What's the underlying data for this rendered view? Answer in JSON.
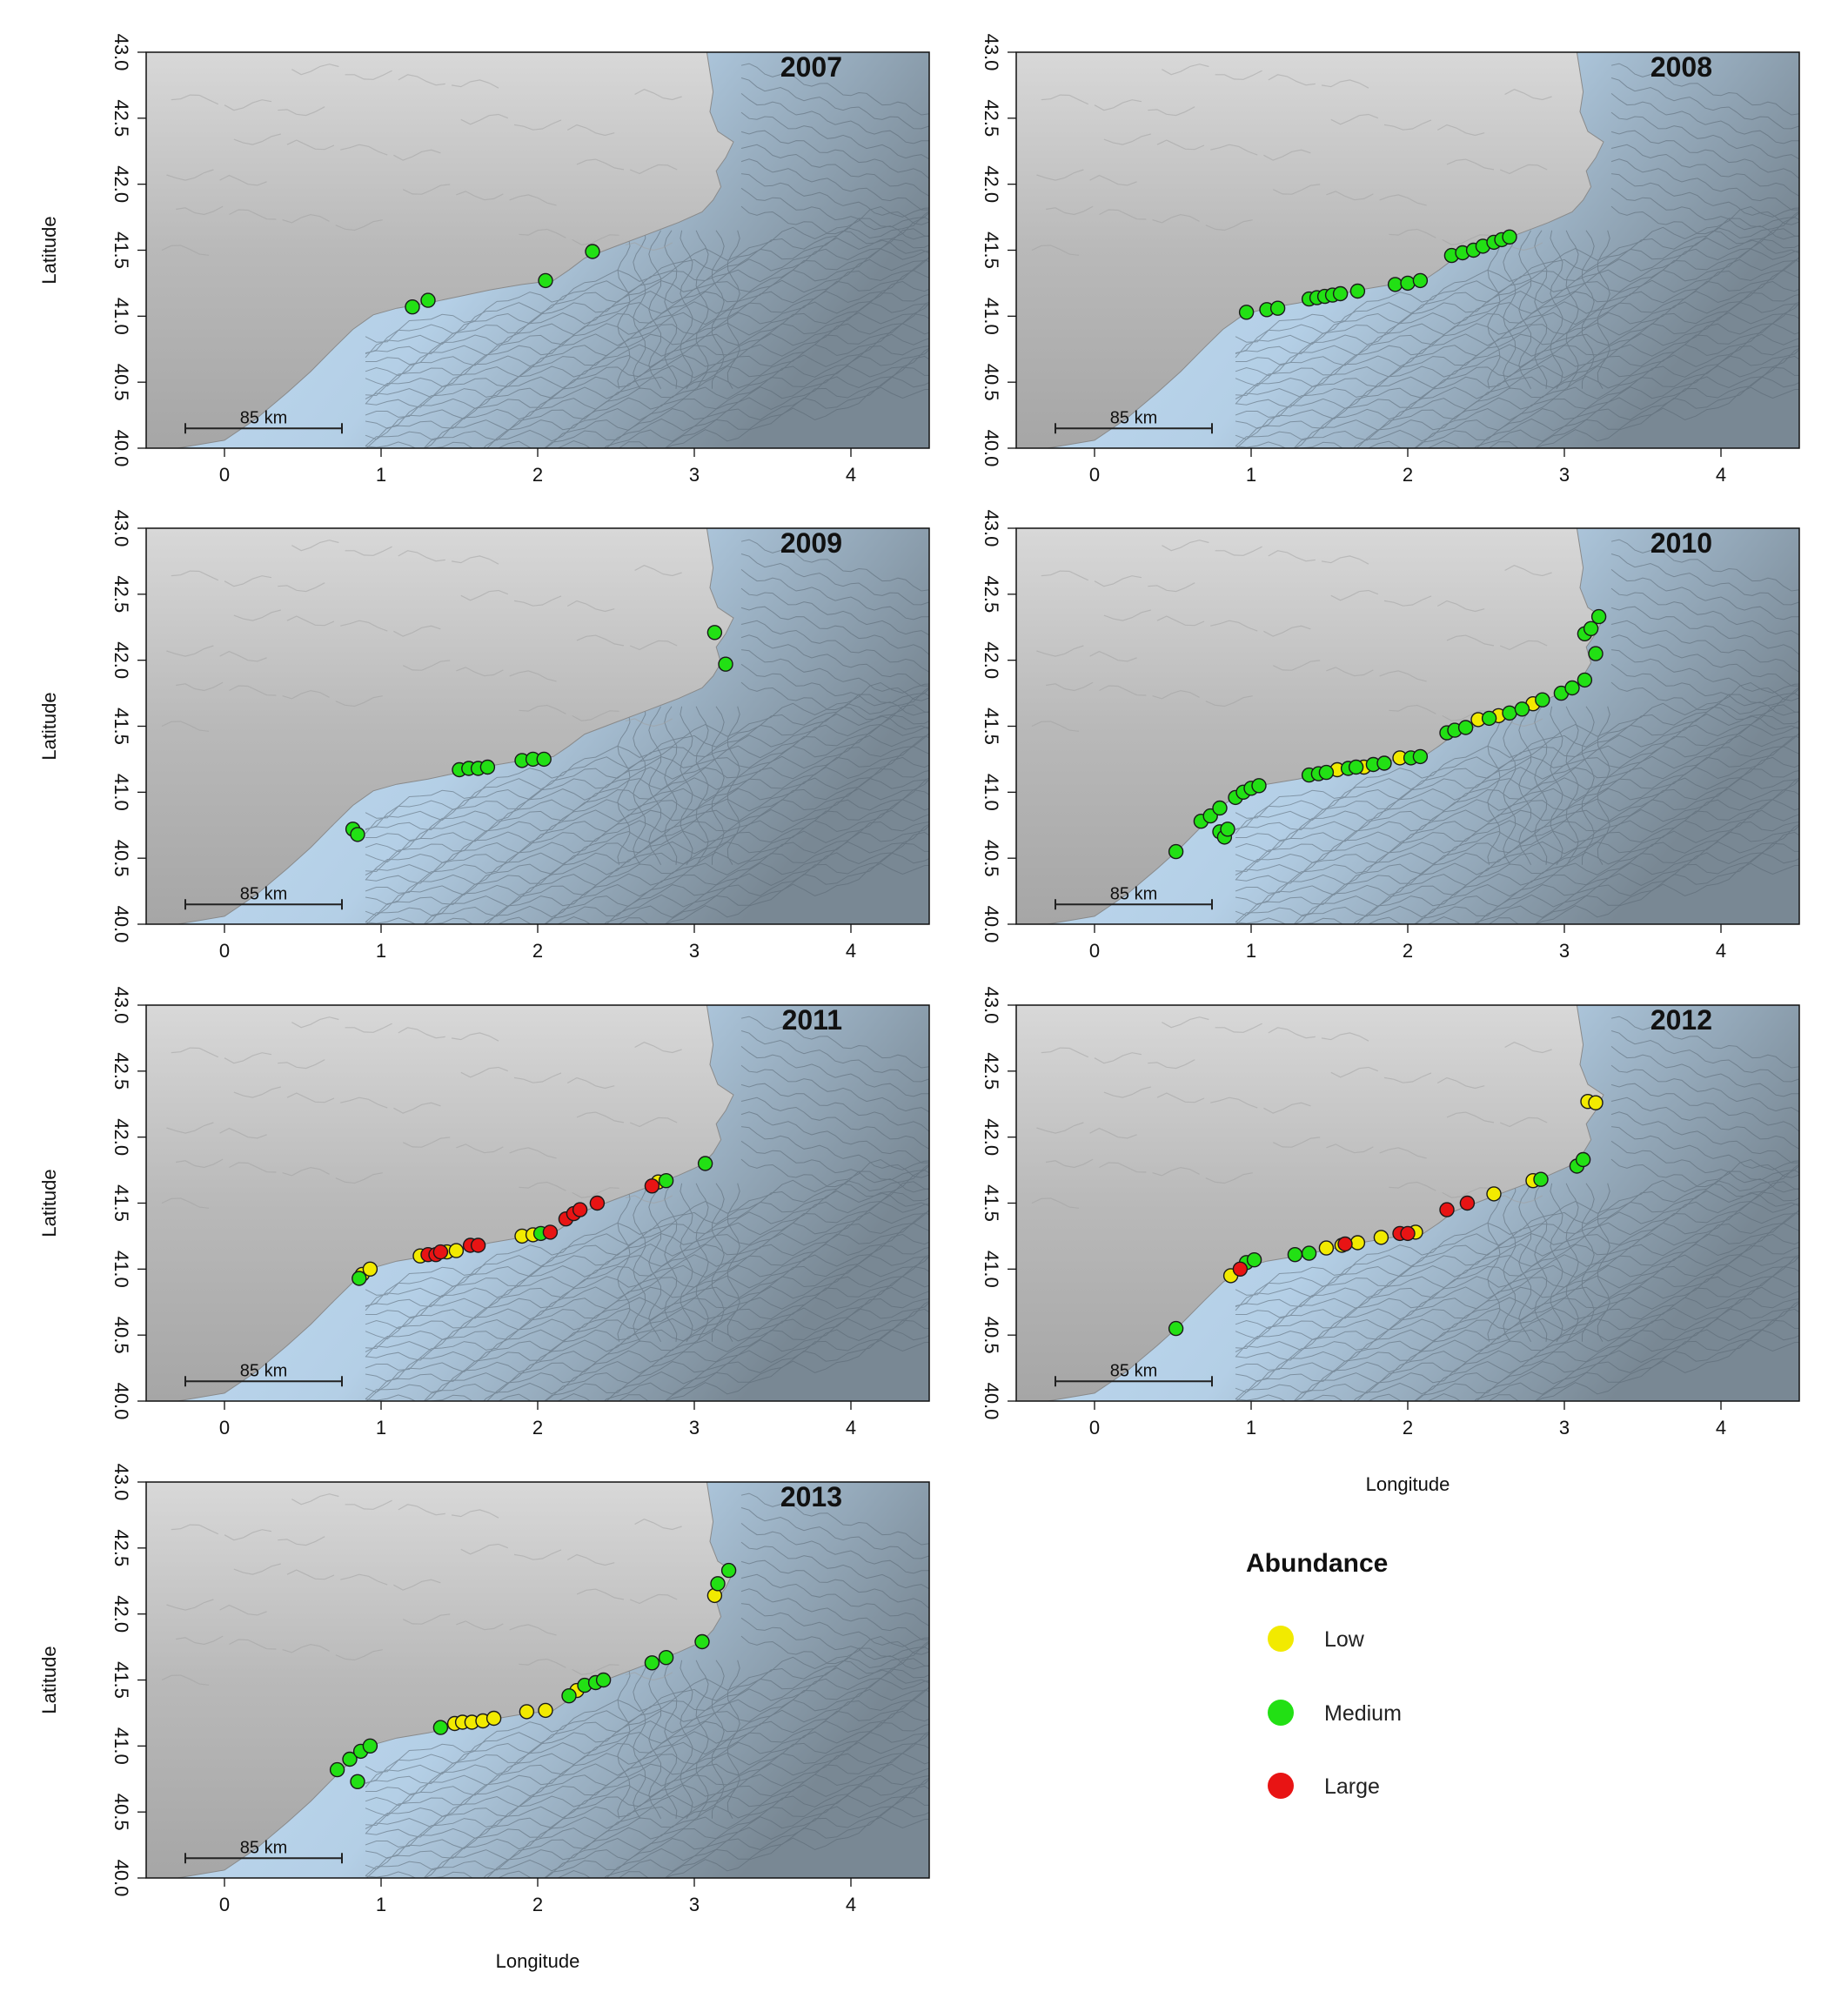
{
  "figure": {
    "panel_count": 7,
    "panels": [
      {
        "year": "2007"
      },
      {
        "year": "2008"
      },
      {
        "year": "2009"
      },
      {
        "year": "2010"
      },
      {
        "year": "2011"
      },
      {
        "year": "2012"
      },
      {
        "year": "2013"
      }
    ],
    "axes": {
      "xlabel": "Longitude",
      "ylabel": "Latitude",
      "xlim": [
        -0.5,
        4.5
      ],
      "ylim": [
        40.0,
        43.0
      ],
      "x_ticks": [
        "0",
        "1",
        "2",
        "3",
        "4"
      ],
      "y_ticks": [
        "40.0",
        "40.5",
        "41.0",
        "41.5",
        "42.0",
        "42.5",
        "43.0"
      ]
    },
    "scale_bar": {
      "label": "85 km"
    },
    "legend": {
      "title": "Abundance",
      "items": [
        {
          "label": "Low",
          "color": "#f2ea00"
        },
        {
          "label": "Medium",
          "color": "#22e014"
        },
        {
          "label": "Large",
          "color": "#e81414"
        }
      ]
    },
    "colors": {
      "land": "#bdbdbd",
      "sea": "#c2dcf3",
      "deep_sea": "#7f8f9c",
      "contour": "#596773"
    }
  },
  "chart_data": [
    {
      "type": "scatter",
      "title": "2007",
      "xlabel": "",
      "ylabel": "Latitude",
      "xlim": [
        -0.5,
        4.5
      ],
      "ylim": [
        40.0,
        43.0
      ],
      "series": [
        {
          "name": "Medium",
          "points": [
            [
              1.2,
              41.07
            ],
            [
              1.3,
              41.12
            ],
            [
              2.05,
              41.27
            ],
            [
              2.35,
              41.49
            ]
          ]
        }
      ]
    },
    {
      "type": "scatter",
      "title": "2008",
      "xlabel": "",
      "ylabel": "",
      "xlim": [
        -0.5,
        4.5
      ],
      "ylim": [
        40.0,
        43.0
      ],
      "series": [
        {
          "name": "Medium",
          "points": [
            [
              0.97,
              41.03
            ],
            [
              1.1,
              41.05
            ],
            [
              1.17,
              41.06
            ],
            [
              1.37,
              41.13
            ],
            [
              1.42,
              41.14
            ],
            [
              1.47,
              41.15
            ],
            [
              1.52,
              41.16
            ],
            [
              1.57,
              41.17
            ],
            [
              1.68,
              41.19
            ],
            [
              1.92,
              41.24
            ],
            [
              2.0,
              41.25
            ],
            [
              2.08,
              41.27
            ],
            [
              2.28,
              41.46
            ],
            [
              2.35,
              41.48
            ],
            [
              2.42,
              41.5
            ],
            [
              2.48,
              41.53
            ],
            [
              2.55,
              41.56
            ],
            [
              2.6,
              41.58
            ],
            [
              2.65,
              41.6
            ]
          ]
        }
      ]
    },
    {
      "type": "scatter",
      "title": "2009",
      "xlabel": "",
      "ylabel": "Latitude",
      "xlim": [
        -0.5,
        4.5
      ],
      "ylim": [
        40.0,
        43.0
      ],
      "series": [
        {
          "name": "Medium",
          "points": [
            [
              0.82,
              40.72
            ],
            [
              0.85,
              40.68
            ],
            [
              1.5,
              41.17
            ],
            [
              1.56,
              41.18
            ],
            [
              1.62,
              41.18
            ],
            [
              1.68,
              41.19
            ],
            [
              1.9,
              41.24
            ],
            [
              1.97,
              41.25
            ],
            [
              2.04,
              41.25
            ],
            [
              3.13,
              42.21
            ],
            [
              3.2,
              41.97
            ]
          ]
        }
      ]
    },
    {
      "type": "scatter",
      "title": "2010",
      "xlabel": "",
      "ylabel": "",
      "xlim": [
        -0.5,
        4.5
      ],
      "ylim": [
        40.0,
        43.0
      ],
      "series": [
        {
          "name": "Low",
          "points": [
            [
              1.55,
              41.17
            ],
            [
              1.72,
              41.19
            ],
            [
              1.95,
              41.26
            ],
            [
              2.45,
              41.55
            ],
            [
              2.58,
              41.58
            ],
            [
              2.8,
              41.67
            ]
          ]
        },
        {
          "name": "Medium",
          "points": [
            [
              0.52,
              40.55
            ],
            [
              0.68,
              40.78
            ],
            [
              0.74,
              40.82
            ],
            [
              0.8,
              40.88
            ],
            [
              0.8,
              40.7
            ],
            [
              0.83,
              40.66
            ],
            [
              0.85,
              40.72
            ],
            [
              0.9,
              40.96
            ],
            [
              0.95,
              41.0
            ],
            [
              1.0,
              41.03
            ],
            [
              1.05,
              41.05
            ],
            [
              1.37,
              41.13
            ],
            [
              1.43,
              41.14
            ],
            [
              1.48,
              41.15
            ],
            [
              1.62,
              41.18
            ],
            [
              1.67,
              41.19
            ],
            [
              1.78,
              41.21
            ],
            [
              1.85,
              41.22
            ],
            [
              2.02,
              41.26
            ],
            [
              2.08,
              41.27
            ],
            [
              2.25,
              41.45
            ],
            [
              2.3,
              41.47
            ],
            [
              2.37,
              41.49
            ],
            [
              2.52,
              41.56
            ],
            [
              2.65,
              41.6
            ],
            [
              2.73,
              41.63
            ],
            [
              2.86,
              41.7
            ],
            [
              2.98,
              41.75
            ],
            [
              3.05,
              41.79
            ],
            [
              3.13,
              41.85
            ],
            [
              3.2,
              42.05
            ],
            [
              3.13,
              42.2
            ],
            [
              3.17,
              42.24
            ],
            [
              3.22,
              42.33
            ]
          ]
        }
      ]
    },
    {
      "type": "scatter",
      "title": "2011",
      "xlabel": "",
      "ylabel": "Latitude",
      "xlim": [
        -0.5,
        4.5
      ],
      "ylim": [
        40.0,
        43.0
      ],
      "series": [
        {
          "name": "Low",
          "points": [
            [
              0.88,
              40.96
            ],
            [
              0.93,
              41.0
            ],
            [
              1.25,
              41.1
            ],
            [
              1.42,
              41.13
            ],
            [
              1.48,
              41.14
            ],
            [
              1.9,
              41.25
            ],
            [
              1.97,
              41.26
            ],
            [
              2.77,
              41.66
            ]
          ]
        },
        {
          "name": "Medium",
          "points": [
            [
              0.86,
              40.93
            ],
            [
              2.02,
              41.27
            ],
            [
              2.82,
              41.67
            ],
            [
              3.07,
              41.8
            ]
          ]
        },
        {
          "name": "Large",
          "points": [
            [
              1.3,
              41.11
            ],
            [
              1.35,
              41.11
            ],
            [
              1.38,
              41.13
            ],
            [
              1.57,
              41.18
            ],
            [
              1.62,
              41.18
            ],
            [
              2.08,
              41.28
            ],
            [
              2.18,
              41.38
            ],
            [
              2.23,
              41.42
            ],
            [
              2.27,
              41.45
            ],
            [
              2.38,
              41.5
            ],
            [
              2.73,
              41.63
            ]
          ]
        }
      ]
    },
    {
      "type": "scatter",
      "title": "2012",
      "xlabel": "Longitude",
      "ylabel": "",
      "xlim": [
        -0.5,
        4.5
      ],
      "ylim": [
        40.0,
        43.0
      ],
      "series": [
        {
          "name": "Low",
          "points": [
            [
              0.87,
              40.95
            ],
            [
              1.48,
              41.16
            ],
            [
              1.58,
              41.18
            ],
            [
              1.68,
              41.2
            ],
            [
              1.83,
              41.24
            ],
            [
              2.05,
              41.28
            ],
            [
              2.55,
              41.57
            ],
            [
              2.8,
              41.67
            ],
            [
              3.15,
              42.27
            ],
            [
              3.2,
              42.26
            ]
          ]
        },
        {
          "name": "Medium",
          "points": [
            [
              0.52,
              40.55
            ],
            [
              0.97,
              41.05
            ],
            [
              1.02,
              41.07
            ],
            [
              1.28,
              41.11
            ],
            [
              1.37,
              41.12
            ],
            [
              2.85,
              41.68
            ],
            [
              3.08,
              41.78
            ],
            [
              3.12,
              41.83
            ]
          ]
        },
        {
          "name": "Large",
          "points": [
            [
              0.93,
              41.0
            ],
            [
              1.6,
              41.19
            ],
            [
              1.95,
              41.27
            ],
            [
              2.0,
              41.27
            ],
            [
              2.25,
              41.45
            ],
            [
              2.38,
              41.5
            ]
          ]
        }
      ]
    },
    {
      "type": "scatter",
      "title": "2013",
      "xlabel": "Longitude",
      "ylabel": "Latitude",
      "xlim": [
        -0.5,
        4.5
      ],
      "ylim": [
        40.0,
        43.0
      ],
      "series": [
        {
          "name": "Low",
          "points": [
            [
              1.47,
              41.17
            ],
            [
              1.52,
              41.18
            ],
            [
              1.58,
              41.18
            ],
            [
              1.65,
              41.19
            ],
            [
              1.72,
              41.21
            ],
            [
              1.93,
              41.26
            ],
            [
              2.05,
              41.27
            ],
            [
              2.25,
              41.42
            ],
            [
              3.13,
              42.14
            ]
          ]
        },
        {
          "name": "Medium",
          "points": [
            [
              0.72,
              40.82
            ],
            [
              0.8,
              40.9
            ],
            [
              0.85,
              40.73
            ],
            [
              0.87,
              40.96
            ],
            [
              0.93,
              41.0
            ],
            [
              1.38,
              41.14
            ],
            [
              2.2,
              41.38
            ],
            [
              2.3,
              41.46
            ],
            [
              2.37,
              41.48
            ],
            [
              2.42,
              41.5
            ],
            [
              2.73,
              41.63
            ],
            [
              2.82,
              41.67
            ],
            [
              3.05,
              41.79
            ],
            [
              3.15,
              42.23
            ],
            [
              3.22,
              42.33
            ]
          ]
        }
      ]
    }
  ]
}
